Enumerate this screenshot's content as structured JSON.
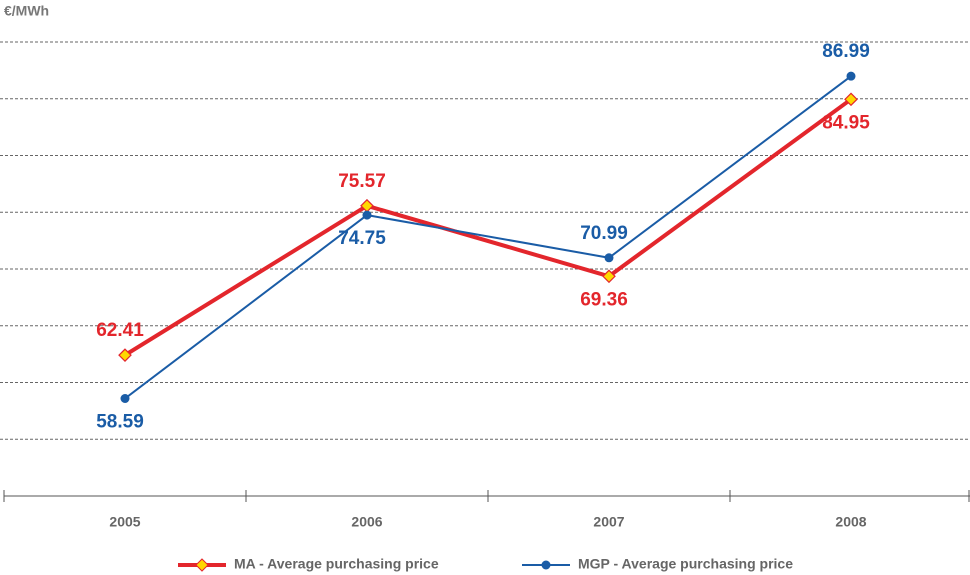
{
  "chart_data": {
    "type": "line",
    "y_label": "€/MWh",
    "categories": [
      "2005",
      "2006",
      "2007",
      "2008"
    ],
    "series": [
      {
        "name": "MA - Average purchasing price",
        "color": "#e3262c",
        "marker_fill": "#ffd800",
        "marker": "diamond",
        "values": [
          62.41,
          75.57,
          69.36,
          84.95
        ]
      },
      {
        "name": "MGP - Average purchasing price",
        "color": "#1a5ca6",
        "marker": "circle",
        "values": [
          58.59,
          74.75,
          70.99,
          86.99
        ]
      }
    ],
    "ylim": [
      50,
      90
    ],
    "yticks": [
      55,
      60,
      65,
      70,
      75,
      80,
      85,
      90
    ],
    "grid": true,
    "legend": "bottom"
  }
}
